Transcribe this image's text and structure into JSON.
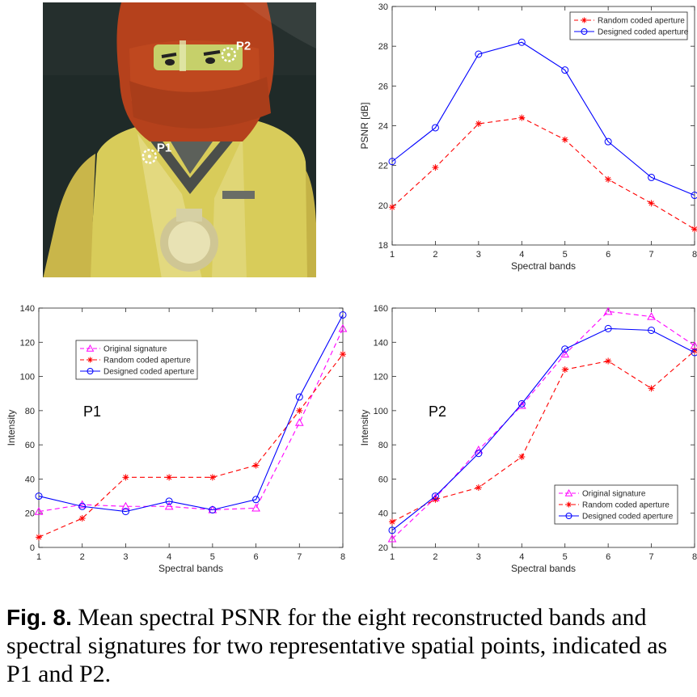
{
  "photo": {
    "point_labels": [
      "P1",
      "P2"
    ],
    "point_coords": [
      [
        0.39,
        0.56
      ],
      [
        0.68,
        0.19
      ]
    ]
  },
  "chart_data": [
    {
      "type": "line",
      "xlabel": "Spectral bands",
      "ylabel": "PSNR [dB]",
      "x": [
        1,
        2,
        3,
        4,
        5,
        6,
        7,
        8
      ],
      "xlim": [
        1,
        8
      ],
      "ylim": [
        18,
        30
      ],
      "yticks": [
        18,
        20,
        22,
        24,
        26,
        28,
        30
      ],
      "legend": "top-right",
      "series": [
        {
          "name": "Random coded aperture",
          "color": "#ff0000",
          "marker": "star",
          "dash": "dashed",
          "values": [
            19.9,
            21.9,
            24.1,
            24.4,
            23.3,
            21.3,
            20.1,
            18.8
          ]
        },
        {
          "name": "Designed coded aperture",
          "color": "#0000ff",
          "marker": "circle",
          "dash": "solid",
          "values": [
            22.2,
            23.9,
            27.6,
            28.2,
            26.8,
            23.2,
            21.4,
            20.5
          ]
        }
      ]
    },
    {
      "type": "line",
      "xlabel": "Spectral bands",
      "ylabel": "Intensity",
      "annotation": "P1",
      "x": [
        1,
        2,
        3,
        4,
        5,
        6,
        7,
        8
      ],
      "xlim": [
        1,
        8
      ],
      "ylim": [
        0,
        140
      ],
      "yticks": [
        0,
        20,
        40,
        60,
        80,
        100,
        120,
        140
      ],
      "legend": "upper-left",
      "series": [
        {
          "name": "Original signature",
          "color": "#ff00ff",
          "marker": "triangle",
          "dash": "dashed",
          "values": [
            21,
            25,
            24,
            24,
            22,
            23,
            73,
            128
          ]
        },
        {
          "name": "Random coded aperture",
          "color": "#ff0000",
          "marker": "star",
          "dash": "dashed",
          "values": [
            6,
            17,
            41,
            41,
            41,
            48,
            80,
            113
          ]
        },
        {
          "name": "Designed coded aperture",
          "color": "#0000ff",
          "marker": "circle",
          "dash": "solid",
          "values": [
            30,
            24,
            21,
            27,
            22,
            28,
            88,
            136
          ]
        }
      ]
    },
    {
      "type": "line",
      "xlabel": "Spectral bands",
      "ylabel": "Intensity",
      "annotation": "P2",
      "x": [
        1,
        2,
        3,
        4,
        5,
        6,
        7,
        8
      ],
      "xlim": [
        1,
        8
      ],
      "ylim": [
        20,
        160
      ],
      "yticks": [
        20,
        40,
        60,
        80,
        100,
        120,
        140,
        160
      ],
      "legend": "bottom-right",
      "series": [
        {
          "name": "Original signature",
          "color": "#ff00ff",
          "marker": "triangle",
          "dash": "dashed",
          "values": [
            25,
            49,
            77,
            103,
            133,
            158,
            155,
            138
          ]
        },
        {
          "name": "Random coded aperture",
          "color": "#ff0000",
          "marker": "star",
          "dash": "dashed",
          "values": [
            35,
            48,
            55,
            73,
            124,
            129,
            113,
            135
          ]
        },
        {
          "name": "Designed coded aperture",
          "color": "#0000ff",
          "marker": "circle",
          "dash": "solid",
          "values": [
            30,
            50,
            75,
            104,
            136,
            148,
            147,
            134
          ]
        }
      ]
    }
  ],
  "caption": {
    "label": "Fig. 8.",
    "text": " Mean spectral PSNR for the eight reconstructed bands and spectral signatures for two representative spatial points, indicated as P1 and P2."
  }
}
